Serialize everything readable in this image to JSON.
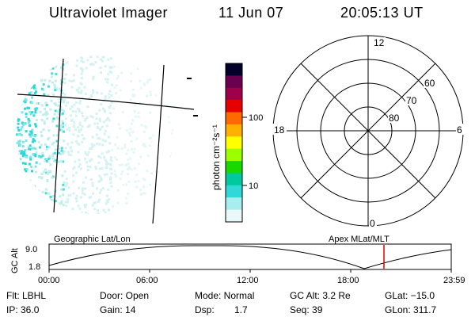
{
  "header": {
    "title": "Ultraviolet Imager",
    "date": "11 Jun 07",
    "time": "20:05:13 UT"
  },
  "colorbar": {
    "unit_label": "photon cm⁻²s⁻¹",
    "ticks": [
      "100",
      "10"
    ],
    "colors": [
      "#00002a",
      "#6b0050",
      "#a0004a",
      "#e60000",
      "#ff6a00",
      "#ffb000",
      "#ffff00",
      "#9cff00",
      "#18d800",
      "#00c8a0",
      "#30d8d8",
      "#a8eeee",
      "#e8f8f8"
    ]
  },
  "polar_plot": {
    "mlt_labels": {
      "top": "12",
      "bottom": "0",
      "left": "18",
      "right": "6"
    },
    "lat_labels": [
      "60",
      "70",
      "80"
    ]
  },
  "orbit_plot": {
    "left_title": "Geographic Lat/Lon",
    "right_title": "Apex MLat/MLT",
    "y_axis_label": "GC Alt",
    "y_ticks": [
      "9.0",
      "1.8"
    ],
    "x_ticks": [
      "00:00",
      "06:00",
      "12:00",
      "18:00",
      "23:59"
    ],
    "current_marker_color": "#e00000"
  },
  "footer": {
    "filter": "Flt: LBHL",
    "door": "Door: Open",
    "mode": "Mode: Normal",
    "gc_alt": "GC Alt: 3.2 Re",
    "glat": "GLat: −15.0",
    "ip": "IP: 36.0",
    "gain": "Gain: 14",
    "dsp_label": "Dsp:",
    "dsp_value": "1.7",
    "seq": "Seq: 39",
    "glon": "GLon: 311.7"
  }
}
